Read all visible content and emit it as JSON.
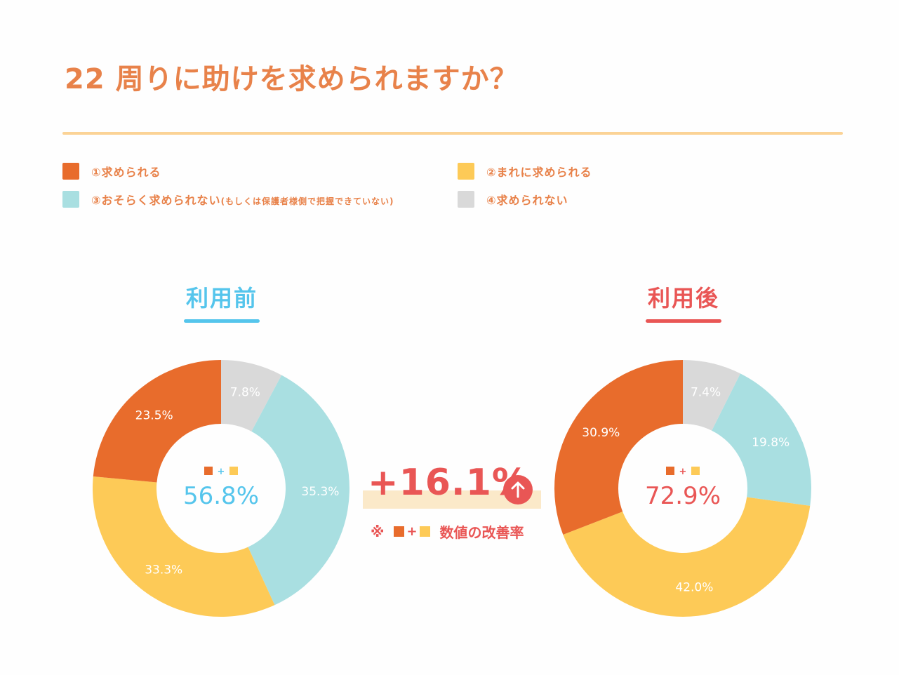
{
  "title": "22 周りに助けを求められますか？",
  "colors": {
    "often": "#e86c2c",
    "rarely": "#fdca57",
    "probably_not": "#a9dfe1",
    "cannot": "#d9d9d9",
    "before": "#55c5ec",
    "after": "#e95655",
    "title": "#e8824a"
  },
  "legend": [
    {
      "label": "①求められる",
      "sub": "",
      "color": "#e86c2c"
    },
    {
      "label": "②まれに求められる",
      "sub": "",
      "color": "#fdca57"
    },
    {
      "label": "③おそらく求められない",
      "sub": "(もしくは保護者様側で把握できていない)",
      "color": "#a9dfe1"
    },
    {
      "label": "④求められない",
      "sub": "",
      "color": "#d9d9d9"
    }
  ],
  "before": {
    "label": "利用前",
    "center_value": "56.8%",
    "center_plus": "+"
  },
  "after": {
    "label": "利用後",
    "center_value": "72.9%",
    "center_plus": "+"
  },
  "improvement": {
    "value": "+16.1%",
    "icon": "arrow-up-icon",
    "note_prefix": "※",
    "note_plus": "+",
    "note_text": "数値の改善率"
  },
  "chart_data": [
    {
      "type": "pie",
      "title": "利用前",
      "categories": [
        "①求められる",
        "②まれに求められる",
        "③おそらく求められない",
        "④求められない"
      ],
      "values": [
        23.5,
        33.3,
        35.3,
        7.8
      ],
      "labels": [
        "23.5%",
        "33.3%",
        "35.3%",
        "7.8%"
      ],
      "center": "56.8%"
    },
    {
      "type": "pie",
      "title": "利用後",
      "categories": [
        "①求められる",
        "②まれに求められる",
        "③おそらく求められない",
        "④求められない"
      ],
      "values": [
        30.9,
        42.0,
        19.8,
        7.4
      ],
      "labels": [
        "30.9%",
        "42.0%",
        "19.8%",
        "7.4%"
      ],
      "center": "72.9%"
    }
  ]
}
